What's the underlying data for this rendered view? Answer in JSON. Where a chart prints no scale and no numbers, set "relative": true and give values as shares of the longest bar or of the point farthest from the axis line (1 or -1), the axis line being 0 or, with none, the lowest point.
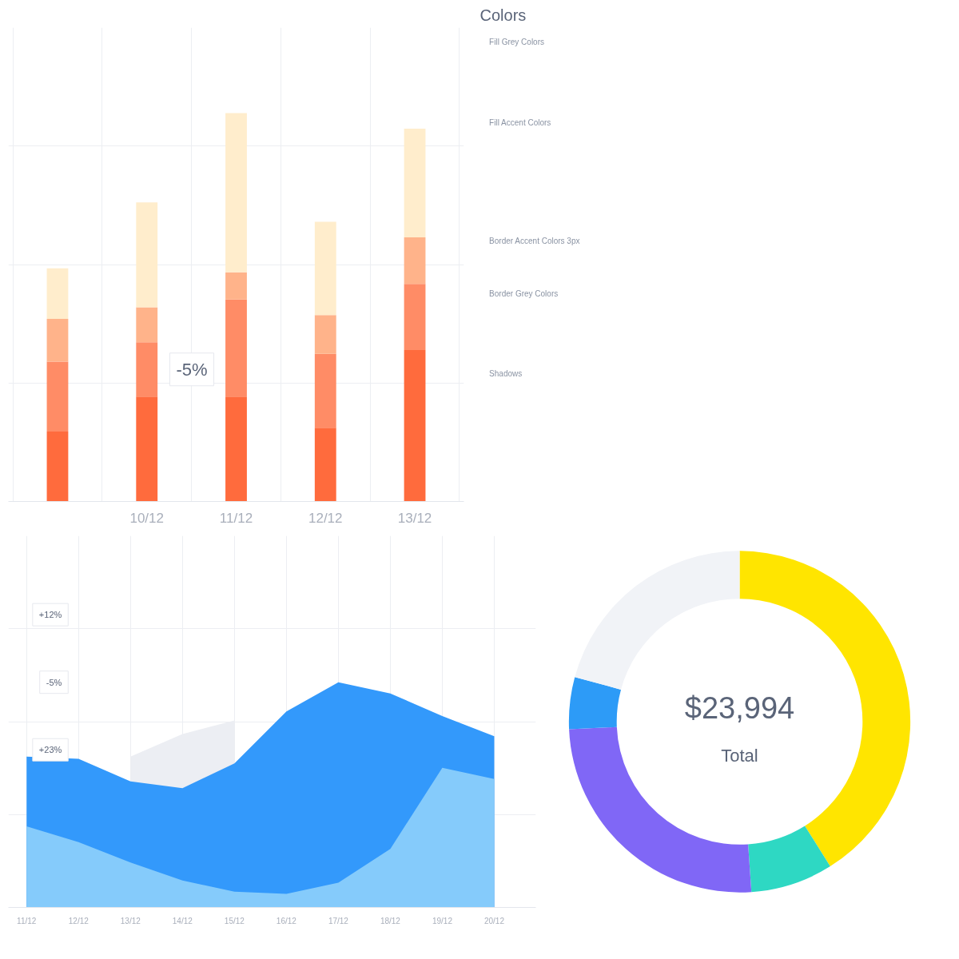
{
  "chart_data": [
    {
      "type": "bar",
      "stacked": true,
      "relative": true,
      "categories": [
        null,
        "10/12",
        "11/12",
        "12/12",
        "13/12"
      ],
      "series": [
        {
          "color": "#ff6b3d",
          "values": [
            0.18,
            0.27,
            0.27,
            0.19,
            0.39
          ]
        },
        {
          "color": "#ff8c66",
          "values": [
            0.18,
            0.14,
            0.25,
            0.19,
            0.17
          ]
        },
        {
          "color": "#ffb38a",
          "values": [
            0.11,
            0.09,
            0.07,
            0.1,
            0.12
          ]
        },
        {
          "color": "#ffedcc",
          "values": [
            0.13,
            0.27,
            0.41,
            0.24,
            0.28
          ]
        }
      ],
      "grid": true,
      "annotations": [
        "-5%"
      ]
    },
    {
      "type": "other",
      "title": "Colors",
      "annotations": [
        "Fill Grey Colors",
        "Fill Accent Colors",
        "Border Accent Colors 3px",
        "Border Grey Colors",
        "Shadows"
      ]
    },
    {
      "type": "area",
      "relative": true,
      "categories": [
        "11/12",
        "12/12",
        "13/12",
        "14/12",
        "15/12",
        "16/12",
        "17/12",
        "18/12",
        "19/12",
        "20/12"
      ],
      "series": [
        {
          "color": "#eceef3",
          "values": [
            null,
            null,
            0.67,
            0.77,
            0.83,
            null,
            null,
            null,
            null,
            null
          ]
        },
        {
          "color": "#3399fb",
          "values": [
            0.67,
            0.66,
            0.56,
            0.53,
            0.64,
            0.87,
            1.0,
            0.95,
            0.85,
            0.76
          ]
        },
        {
          "color": "#85cbfb",
          "values": [
            0.36,
            0.29,
            0.2,
            0.12,
            0.07,
            0.06,
            0.11,
            0.26,
            0.62,
            0.57
          ]
        }
      ],
      "grid": true,
      "annotations": [
        "+12%",
        "-5%",
        "+23%"
      ]
    },
    {
      "type": "donut",
      "categories": [
        null,
        null,
        null,
        null,
        null
      ],
      "values": [
        41.1,
        7.8,
        25.4,
        4.9,
        20.8
      ],
      "colors": [
        "#ffe500",
        "#2ed8c3",
        "#8067f6",
        "#2d9bf7",
        "#f1f3f7"
      ],
      "annotations": [
        "$23,994",
        "Total"
      ]
    }
  ]
}
